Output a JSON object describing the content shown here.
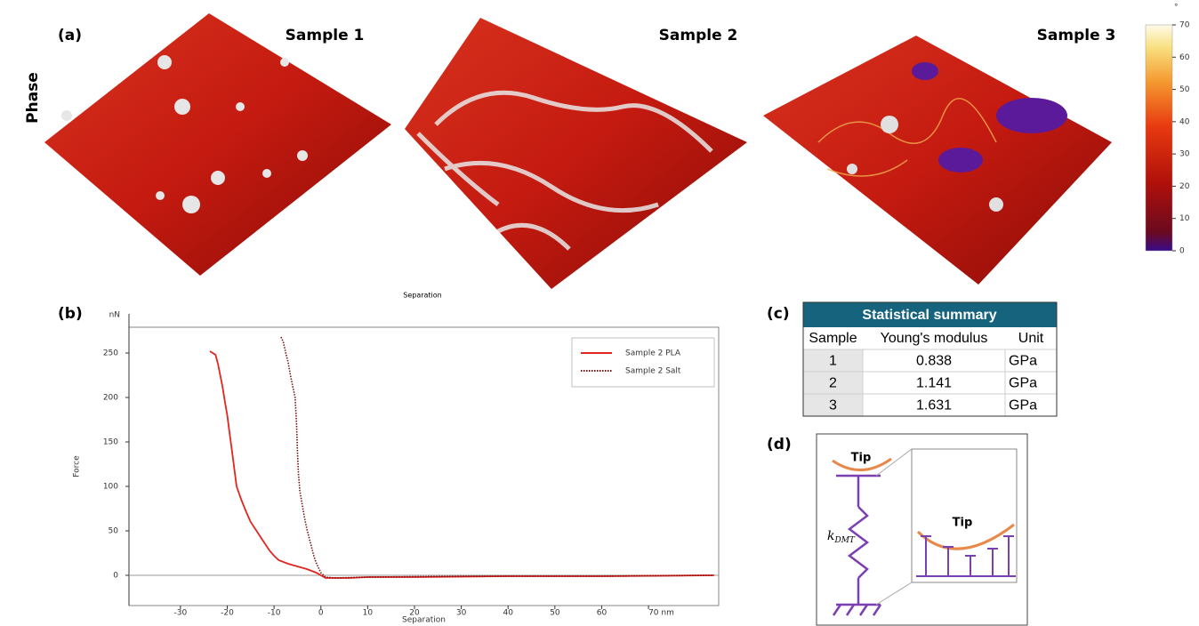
{
  "panels": {
    "a": "(a)",
    "b": "(b)",
    "c": "(c)",
    "d": "(d)"
  },
  "row_label": "Phase",
  "samples": [
    "Sample 1",
    "Sample 2",
    "Sample 3"
  ],
  "colorbar": {
    "unit": "°",
    "ticks": [
      0,
      10,
      20,
      30,
      40,
      50,
      60,
      70
    ],
    "lim": [
      0,
      70
    ]
  },
  "stray_label": "Separation",
  "chart_data": {
    "type": "line",
    "x_label": "Separation",
    "y_label": "Force",
    "y_unit": "nN",
    "xlim": [
      -41,
      85
    ],
    "ylim": [
      -34,
      279
    ],
    "xticks": [
      -30,
      -20,
      -10,
      0,
      10,
      20,
      30,
      40,
      50,
      60,
      {
        "value": 70,
        "label": "70 nm"
      }
    ],
    "yticks": [
      0,
      50,
      100,
      150,
      200,
      250
    ],
    "legend": "upper right",
    "series": [
      {
        "name": "Sample 2 PLA",
        "color": "#e0261f",
        "style": "solid",
        "x": [
          -23.7,
          -22.5,
          -22,
          -21.5,
          -21,
          -20.5,
          -20,
          -19.5,
          -19,
          -18.5,
          -18,
          -17,
          -16,
          -15,
          -14,
          -13,
          -12,
          -11,
          -10,
          -9,
          -7,
          -5,
          -3,
          -1,
          0,
          1,
          3,
          6,
          10,
          20,
          40,
          60,
          84
        ],
        "values": [
          252,
          248,
          238,
          225,
          212,
          195,
          180,
          160,
          140,
          120,
          100,
          85,
          72,
          60,
          52,
          44,
          36,
          28,
          22,
          17,
          13,
          10,
          7,
          3,
          0,
          -3,
          -3,
          -3,
          -2,
          -2,
          -1,
          -1,
          0
        ]
      },
      {
        "name": "Sample 2 Salt",
        "color": "#7a1010",
        "style": "dotted",
        "x": [
          -8.5,
          -8,
          -7.5,
          -7,
          -6.5,
          -6,
          -5.5,
          -5.2,
          -5,
          -4.8,
          -4.5,
          -4,
          -3.5,
          -3,
          -2.5,
          -2,
          -1.5,
          -1,
          0,
          1,
          3,
          10,
          30,
          60,
          84
        ],
        "values": [
          268,
          262,
          250,
          240,
          225,
          212,
          200,
          170,
          140,
          115,
          95,
          80,
          65,
          52,
          42,
          32,
          22,
          14,
          3,
          -2,
          -3,
          -2,
          -1,
          -1,
          0
        ]
      }
    ]
  },
  "table": {
    "title": "Statistical summary",
    "header": [
      "Sample",
      "Young's modulus",
      "Unit"
    ],
    "rows": [
      [
        1,
        0.838,
        "GPa"
      ],
      [
        2,
        1.141,
        "GPa"
      ],
      [
        3,
        1.631,
        "GPa"
      ]
    ]
  },
  "diagram": {
    "tip_top": "Tip",
    "tip_inset": "Tip",
    "spring_label": "k",
    "spring_subscript": "DMT"
  }
}
